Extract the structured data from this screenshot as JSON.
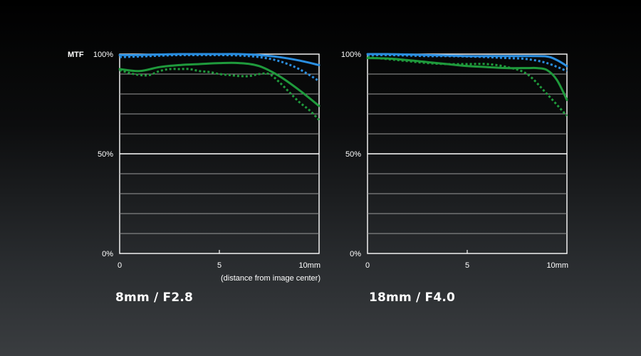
{
  "chart_data": [
    {
      "type": "line",
      "title": "8mm / F2.8",
      "ylabel": "MTF",
      "xlabel": "(distance from image center)",
      "xlim": [
        0,
        10
      ],
      "ylim": [
        0,
        100
      ],
      "x_ticks": [
        "0",
        "5",
        "10mm"
      ],
      "y_ticks": [
        "0%",
        "50%",
        "100%"
      ],
      "grid": true,
      "colors": {
        "blue": "#2a8ee0",
        "green": "#1f9a3c"
      },
      "series": [
        {
          "color": "#2a8ee0",
          "style": "solid",
          "x": [
            0,
            1,
            2,
            3,
            4,
            5,
            6,
            7,
            8,
            9,
            10
          ],
          "y": [
            99.5,
            99.5,
            99.8,
            100,
            100,
            100,
            100,
            99.5,
            98.5,
            96.8,
            94.5
          ]
        },
        {
          "color": "#2a8ee0",
          "style": "dotted",
          "x": [
            0,
            1,
            2,
            3,
            4,
            5,
            6,
            7,
            8,
            9,
            10
          ],
          "y": [
            98.5,
            98.8,
            99.2,
            99.5,
            99.5,
            99.5,
            99.3,
            98.5,
            96.5,
            92.5,
            86.5
          ]
        },
        {
          "color": "#1f9a3c",
          "style": "solid",
          "x": [
            0,
            1,
            2,
            3,
            4,
            5,
            6,
            7,
            8,
            9,
            10
          ],
          "y": [
            92.5,
            91.5,
            93.5,
            94.5,
            95,
            95.5,
            95.5,
            94,
            89,
            82,
            74
          ]
        },
        {
          "color": "#1f9a3c",
          "style": "dotted",
          "x": [
            0,
            0.5,
            1,
            1.5,
            2,
            2.5,
            3,
            3.5,
            4,
            4.5,
            5,
            5.5,
            6,
            6.5,
            7,
            7.5,
            8,
            8.5,
            9,
            9.5,
            10
          ],
          "y": [
            92,
            90.5,
            89.5,
            89.5,
            91.5,
            92.5,
            92.5,
            92.5,
            91.5,
            91,
            90,
            89.5,
            89,
            89,
            90,
            90,
            86,
            81,
            76,
            72,
            67
          ]
        }
      ]
    },
    {
      "type": "line",
      "title": "18mm / F4.0",
      "xlim": [
        0,
        10
      ],
      "ylim": [
        0,
        100
      ],
      "x_ticks": [
        "0",
        "5",
        "10mm"
      ],
      "y_ticks": [
        "0%",
        "50%",
        "100%"
      ],
      "grid": true,
      "colors": {
        "blue": "#2a8ee0",
        "green": "#1f9a3c"
      },
      "series": [
        {
          "color": "#2a8ee0",
          "style": "solid",
          "x": [
            0,
            1,
            2,
            3,
            4,
            5,
            6,
            7,
            8,
            9,
            9.5,
            10
          ],
          "y": [
            100,
            100,
            99.8,
            99.5,
            99.3,
            99,
            99,
            99,
            99,
            98.8,
            97,
            94
          ]
        },
        {
          "color": "#2a8ee0",
          "style": "dotted",
          "x": [
            0,
            1,
            2,
            3,
            4,
            5,
            6,
            7,
            8,
            9,
            10
          ],
          "y": [
            99.5,
            99.5,
            99.3,
            99,
            99,
            98.8,
            98.5,
            98,
            97.5,
            95.5,
            91.5
          ]
        },
        {
          "color": "#1f9a3c",
          "style": "solid",
          "x": [
            0,
            1,
            2,
            3,
            4,
            5,
            6,
            7,
            8,
            8.5,
            9,
            9.5,
            10
          ],
          "y": [
            98,
            97.8,
            97,
            96,
            95,
            94,
            93.5,
            93,
            93,
            93,
            92,
            87,
            77
          ]
        },
        {
          "color": "#1f9a3c",
          "style": "dotted",
          "x": [
            0,
            1,
            2,
            3,
            4,
            5,
            6,
            7,
            8,
            9,
            10
          ],
          "y": [
            98.5,
            97.5,
            96.5,
            95.5,
            95,
            95,
            95,
            93.5,
            90,
            80,
            69
          ]
        }
      ]
    }
  ]
}
